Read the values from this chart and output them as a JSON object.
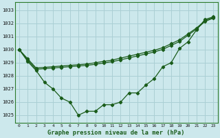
{
  "title": "Graphe pression niveau de la mer (hPa)",
  "bg_color": "#cce8ec",
  "grid_color": "#aacfd4",
  "line_color": "#1a5c1a",
  "xlim": [
    -0.5,
    23.5
  ],
  "ylim": [
    1024.4,
    1033.6
  ],
  "yticks": [
    1025,
    1026,
    1027,
    1028,
    1029,
    1030,
    1031,
    1032,
    1033
  ],
  "xticks": [
    0,
    1,
    2,
    3,
    4,
    5,
    6,
    7,
    8,
    9,
    10,
    11,
    12,
    13,
    14,
    15,
    16,
    17,
    18,
    19,
    20,
    21,
    22,
    23
  ],
  "s1": [
    1030.0,
    1029.1,
    1028.4,
    1027.5,
    1027.0,
    1026.3,
    1026.0,
    1025.0,
    1025.3,
    1025.3,
    1025.8,
    1025.8,
    1026.0,
    1026.7,
    1026.7,
    1027.3,
    1027.8,
    1028.7,
    1029.0,
    1030.1,
    1030.6,
    1031.5,
    1032.3,
    1032.5
  ],
  "s2": [
    1030.0,
    1029.3,
    1028.6,
    1028.65,
    1028.7,
    1028.75,
    1028.8,
    1028.85,
    1028.9,
    1029.0,
    1029.1,
    1029.2,
    1029.35,
    1029.5,
    1029.65,
    1029.8,
    1029.95,
    1030.15,
    1030.45,
    1030.75,
    1031.2,
    1031.65,
    1032.2,
    1032.45
  ],
  "s3": [
    1030.0,
    1029.2,
    1028.5,
    1028.55,
    1028.6,
    1028.65,
    1028.7,
    1028.75,
    1028.8,
    1028.88,
    1028.98,
    1029.08,
    1029.22,
    1029.37,
    1029.52,
    1029.67,
    1029.82,
    1030.02,
    1030.32,
    1030.62,
    1031.1,
    1031.57,
    1032.15,
    1032.4
  ]
}
